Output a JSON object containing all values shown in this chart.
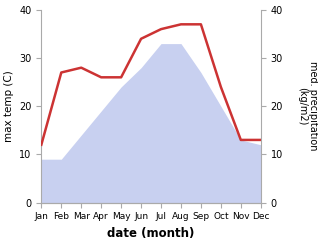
{
  "months": [
    "Jan",
    "Feb",
    "Mar",
    "Apr",
    "May",
    "Jun",
    "Jul",
    "Aug",
    "Sep",
    "Oct",
    "Nov",
    "Dec"
  ],
  "temperature": [
    9,
    9,
    14,
    19,
    24,
    28,
    33,
    33,
    27,
    20,
    13,
    12
  ],
  "precipitation": [
    12,
    27,
    28,
    26,
    26,
    34,
    36,
    37,
    37,
    24,
    13,
    13
  ],
  "temp_fill_color": "#c8d0f0",
  "precip_color": "#cc3333",
  "ylabel_left": "max temp (C)",
  "ylabel_right": "med. precipitation\n(kg/m2)",
  "xlabel": "date (month)",
  "ylim_left": [
    0,
    40
  ],
  "ylim_right": [
    0,
    40
  ],
  "background_color": "#ffffff",
  "yticks": [
    0,
    10,
    20,
    30,
    40
  ]
}
